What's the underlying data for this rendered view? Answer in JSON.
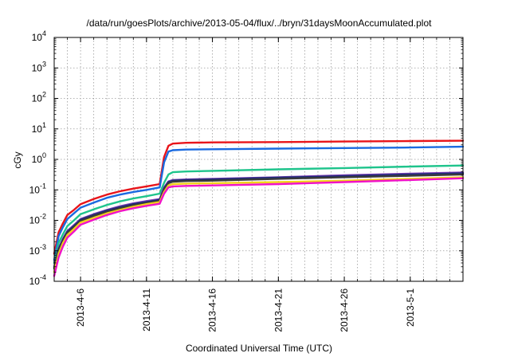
{
  "chart_data": {
    "type": "line",
    "title": "/data/run/goesPlots/archive/2013-05-04/flux/../bryn/31daysMoonAccumulated.plot",
    "xlabel": "Coordinated Universal Time (UTC)",
    "ylabel": "cGy",
    "y_scale": "log",
    "ylim_exp": [
      -4,
      4
    ],
    "y_tick_exponents": [
      -4,
      -3,
      -2,
      -1,
      0,
      1,
      2,
      3,
      4
    ],
    "y_tick_base": "10",
    "xlim": [
      "2013-04-04",
      "2013-05-05"
    ],
    "x_ticks": [
      "2013-4-6",
      "2013-4-11",
      "2013-4-16",
      "2013-4-21",
      "2013-4-26",
      "2013-5-1"
    ],
    "x_tick_dates": [
      "2013-04-06",
      "2013-04-11",
      "2013-04-16",
      "2013-04-21",
      "2013-04-26",
      "2013-05-01"
    ],
    "grid": true,
    "x_dates": [
      "2013-04-04",
      "2013-04-04",
      "2013-04-04",
      "2013-04-05",
      "2013-04-05",
      "2013-04-06",
      "2013-04-07",
      "2013-04-08",
      "2013-04-09",
      "2013-04-10",
      "2013-04-11",
      "2013-04-12",
      "2013-04-12",
      "2013-04-12",
      "2013-04-13",
      "2013-04-14",
      "2013-04-16",
      "2013-04-21",
      "2013-04-26",
      "2013-05-01",
      "2013-05-05"
    ],
    "series": [
      {
        "color": "#e8141a",
        "values": [
          0.0008,
          0.004,
          0.008,
          0.015,
          0.022,
          0.034,
          0.05,
          0.07,
          0.09,
          0.11,
          0.13,
          0.155,
          1.2,
          2.8,
          3.3,
          3.5,
          3.6,
          3.7,
          3.85,
          4.0,
          4.1
        ]
      },
      {
        "color": "#1a6ae0",
        "values": [
          0.0005,
          0.003,
          0.006,
          0.011,
          0.017,
          0.026,
          0.038,
          0.055,
          0.07,
          0.085,
          0.1,
          0.12,
          0.8,
          1.8,
          2.0,
          2.1,
          2.15,
          2.25,
          2.35,
          2.45,
          2.6
        ]
      },
      {
        "color": "#1fc48c",
        "values": [
          0.0004,
          0.0018,
          0.0035,
          0.0065,
          0.01,
          0.016,
          0.023,
          0.032,
          0.042,
          0.052,
          0.062,
          0.075,
          0.17,
          0.32,
          0.38,
          0.4,
          0.42,
          0.47,
          0.52,
          0.58,
          0.63
        ]
      },
      {
        "color": "#7a3cb4",
        "values": [
          0.0003,
          0.0012,
          0.0025,
          0.0045,
          0.007,
          0.011,
          0.016,
          0.022,
          0.029,
          0.036,
          0.043,
          0.05,
          0.12,
          0.19,
          0.21,
          0.22,
          0.23,
          0.26,
          0.3,
          0.34,
          0.37
        ]
      },
      {
        "color": "#1e2a78",
        "values": [
          0.00028,
          0.0011,
          0.0023,
          0.0042,
          0.0065,
          0.0105,
          0.015,
          0.021,
          0.027,
          0.034,
          0.04,
          0.047,
          0.11,
          0.18,
          0.2,
          0.21,
          0.22,
          0.25,
          0.28,
          0.32,
          0.35
        ]
      },
      {
        "color": "#3a3a3a",
        "values": [
          0.00026,
          0.001,
          0.0021,
          0.0039,
          0.006,
          0.0095,
          0.014,
          0.019,
          0.025,
          0.031,
          0.037,
          0.044,
          0.1,
          0.165,
          0.185,
          0.195,
          0.2,
          0.23,
          0.26,
          0.29,
          0.32
        ]
      },
      {
        "color": "#f2d21a",
        "values": [
          0.0002,
          0.0008,
          0.0018,
          0.0033,
          0.0052,
          0.0085,
          0.012,
          0.017,
          0.022,
          0.028,
          0.034,
          0.04,
          0.085,
          0.14,
          0.155,
          0.16,
          0.165,
          0.18,
          0.2,
          0.23,
          0.26
        ]
      },
      {
        "color": "#f012c8",
        "values": [
          0.00015,
          0.0006,
          0.0014,
          0.0027,
          0.0043,
          0.0072,
          0.0105,
          0.015,
          0.02,
          0.025,
          0.03,
          0.035,
          0.075,
          0.12,
          0.13,
          0.135,
          0.14,
          0.155,
          0.18,
          0.21,
          0.24
        ]
      }
    ]
  }
}
